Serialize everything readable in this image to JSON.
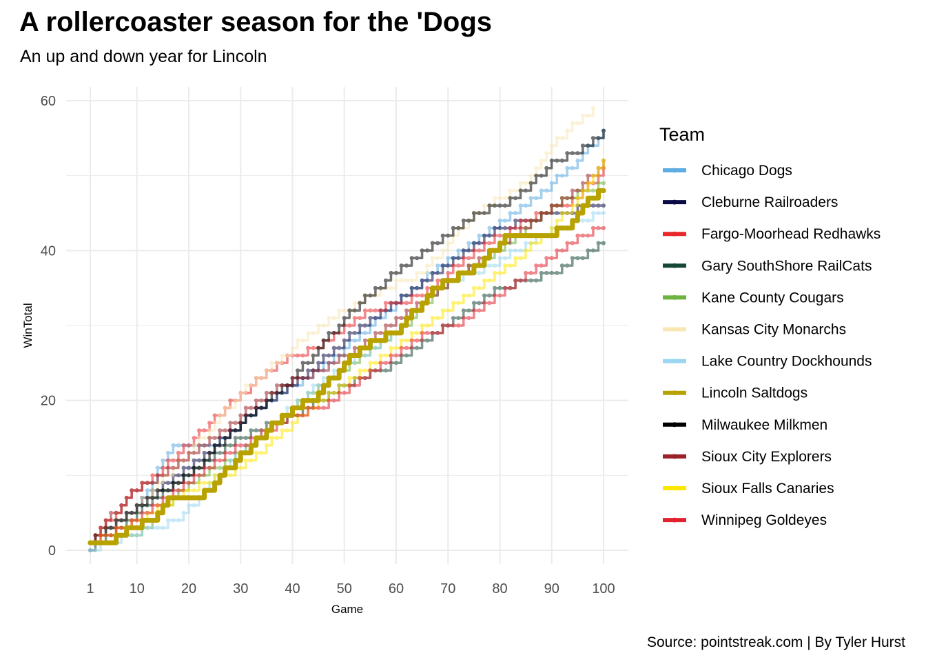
{
  "title": "A rollercoaster season for the 'Dogs",
  "subtitle": "An up and down year for Lincoln",
  "caption": "Source: pointstreak.com | By Tyler Hurst",
  "chart_data": {
    "type": "line",
    "xlabel": "Game",
    "ylabel": "WinTotal",
    "xlim": [
      1,
      100
    ],
    "ylim": [
      0,
      60
    ],
    "x_ticks": [
      1,
      10,
      20,
      30,
      40,
      50,
      60,
      70,
      80,
      90,
      100
    ],
    "y_ticks": [
      0,
      20,
      40,
      60
    ],
    "grid": true,
    "legend": {
      "title": "Team",
      "position": "right"
    },
    "series": [
      {
        "name": "Chicago Dogs",
        "color": "#5DADE2",
        "final": 56,
        "milestones": [
          [
            1,
            1
          ],
          [
            10,
            6
          ],
          [
            17,
            14
          ],
          [
            25,
            14
          ],
          [
            35,
            20
          ],
          [
            45,
            24
          ],
          [
            55,
            30
          ],
          [
            65,
            36
          ],
          [
            75,
            41
          ],
          [
            85,
            46
          ],
          [
            95,
            52
          ],
          [
            100,
            56
          ]
        ]
      },
      {
        "name": "Cleburne Railroaders",
        "color": "#0B0B45",
        "final": 46,
        "milestones": [
          [
            1,
            1
          ],
          [
            10,
            6
          ],
          [
            20,
            11
          ],
          [
            30,
            17
          ],
          [
            40,
            22
          ],
          [
            50,
            28
          ],
          [
            60,
            33
          ],
          [
            70,
            38
          ],
          [
            80,
            43
          ],
          [
            90,
            45
          ],
          [
            100,
            46
          ]
        ]
      },
      {
        "name": "Fargo-Moorhead Redhawks",
        "color": "#E8282B",
        "final": 51,
        "milestones": [
          [
            1,
            1
          ],
          [
            8,
            7
          ],
          [
            15,
            11
          ],
          [
            27,
            19
          ],
          [
            37,
            25
          ],
          [
            45,
            27
          ],
          [
            55,
            32
          ],
          [
            65,
            34
          ],
          [
            75,
            40
          ],
          [
            85,
            44
          ],
          [
            95,
            47
          ],
          [
            100,
            51
          ]
        ]
      },
      {
        "name": "Gary SouthShore RailCats",
        "color": "#154734",
        "final": 41,
        "milestones": [
          [
            1,
            0
          ],
          [
            10,
            5
          ],
          [
            20,
            10
          ],
          [
            30,
            15
          ],
          [
            40,
            18
          ],
          [
            50,
            22
          ],
          [
            60,
            25
          ],
          [
            70,
            30
          ],
          [
            80,
            35
          ],
          [
            90,
            37
          ],
          [
            95,
            39
          ],
          [
            100,
            41
          ]
        ]
      },
      {
        "name": "Kane County Cougars",
        "color": "#6DB33F",
        "final": 49,
        "milestones": [
          [
            1,
            1
          ],
          [
            10,
            2
          ],
          [
            20,
            9
          ],
          [
            30,
            13
          ],
          [
            40,
            19
          ],
          [
            50,
            24
          ],
          [
            60,
            29
          ],
          [
            70,
            36
          ],
          [
            80,
            40
          ],
          [
            90,
            46
          ],
          [
            100,
            49
          ]
        ]
      },
      {
        "name": "Kansas City Monarchs",
        "color": "#F8E7B5",
        "final": 59,
        "milestones": [
          [
            1,
            1
          ],
          [
            10,
            6
          ],
          [
            20,
            13
          ],
          [
            30,
            21
          ],
          [
            40,
            27
          ],
          [
            50,
            32
          ],
          [
            55,
            34
          ],
          [
            65,
            37
          ],
          [
            75,
            45
          ],
          [
            85,
            49
          ],
          [
            90,
            54
          ],
          [
            98,
            59
          ]
        ]
      },
      {
        "name": "Lake Country Dockhounds",
        "color": "#9AD6F2",
        "final": 45,
        "milestones": [
          [
            1,
            0
          ],
          [
            8,
            2
          ],
          [
            18,
            4
          ],
          [
            28,
            12
          ],
          [
            38,
            18
          ],
          [
            48,
            24
          ],
          [
            58,
            28
          ],
          [
            68,
            35
          ],
          [
            78,
            38
          ],
          [
            88,
            42
          ],
          [
            100,
            45
          ]
        ]
      },
      {
        "name": "Lincoln Saltdogs",
        "color": "#B8A200",
        "final": 48,
        "milestones": [
          [
            1,
            1
          ],
          [
            5,
            1
          ],
          [
            8,
            3
          ],
          [
            13,
            4
          ],
          [
            16,
            7
          ],
          [
            22,
            7
          ],
          [
            29,
            12
          ],
          [
            35,
            16
          ],
          [
            40,
            19
          ],
          [
            44,
            20
          ],
          [
            50,
            25
          ],
          [
            56,
            28
          ],
          [
            60,
            29
          ],
          [
            66,
            34
          ],
          [
            70,
            36
          ],
          [
            76,
            38
          ],
          [
            81,
            42
          ],
          [
            89,
            42
          ],
          [
            93,
            43
          ],
          [
            96,
            46
          ],
          [
            100,
            48
          ]
        ]
      },
      {
        "name": "Milwaukee Milkmen",
        "color": "#000000",
        "final": 56,
        "milestones": [
          [
            1,
            1
          ],
          [
            5,
            3
          ],
          [
            10,
            6
          ],
          [
            20,
            10
          ],
          [
            30,
            17
          ],
          [
            40,
            23
          ],
          [
            50,
            31
          ],
          [
            58,
            36
          ],
          [
            65,
            40
          ],
          [
            70,
            42
          ],
          [
            75,
            45
          ],
          [
            80,
            46
          ],
          [
            85,
            48
          ],
          [
            90,
            52
          ],
          [
            95,
            53
          ],
          [
            100,
            56
          ]
        ]
      },
      {
        "name": "Sioux City Explorers",
        "color": "#9B2226",
        "final": 52,
        "milestones": [
          [
            1,
            1
          ],
          [
            9,
            8
          ],
          [
            15,
            10
          ],
          [
            25,
            15
          ],
          [
            35,
            21
          ],
          [
            45,
            24
          ],
          [
            55,
            28
          ],
          [
            65,
            33
          ],
          [
            75,
            38
          ],
          [
            85,
            43
          ],
          [
            95,
            48
          ],
          [
            100,
            52
          ]
        ]
      },
      {
        "name": "Sioux Falls Canaries",
        "color": "#FFE600",
        "final": 52,
        "milestones": [
          [
            1,
            1
          ],
          [
            10,
            4
          ],
          [
            20,
            8
          ],
          [
            30,
            11
          ],
          [
            40,
            17
          ],
          [
            50,
            22
          ],
          [
            60,
            27
          ],
          [
            70,
            32
          ],
          [
            80,
            37
          ],
          [
            90,
            43
          ],
          [
            95,
            47
          ],
          [
            100,
            52
          ]
        ]
      },
      {
        "name": "Winnipeg Goldeyes",
        "color": "#E2222E",
        "final": 43,
        "milestones": [
          [
            1,
            1
          ],
          [
            10,
            4
          ],
          [
            20,
            9
          ],
          [
            30,
            14
          ],
          [
            40,
            18
          ],
          [
            45,
            19
          ],
          [
            52,
            22
          ],
          [
            58,
            25
          ],
          [
            65,
            29
          ],
          [
            72,
            30
          ],
          [
            80,
            34
          ],
          [
            88,
            38
          ],
          [
            95,
            42
          ],
          [
            100,
            43
          ]
        ]
      }
    ]
  }
}
